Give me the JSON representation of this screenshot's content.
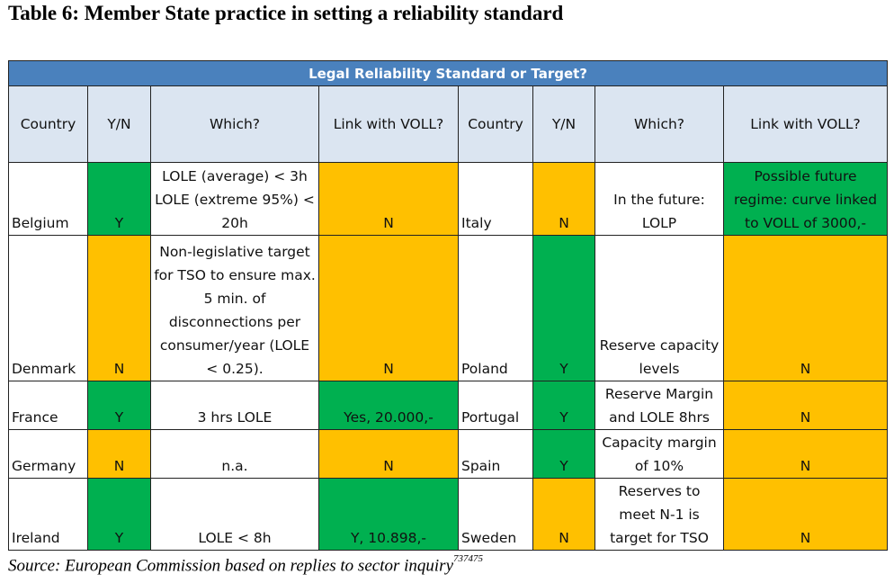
{
  "title": "Table 6: Member State practice in setting a reliability standard",
  "banner": "Legal Reliability Standard or Target?",
  "headers": [
    "Country",
    "Y/N",
    "Which?",
    "Link with VOLL?",
    "Country",
    "Y/N",
    "Which?",
    "Link with VOLL?"
  ],
  "rows": [
    {
      "left": {
        "country": "Belgium",
        "yn": "Y",
        "which": "LOLE (average) < 3h LOLE (extreme 95%) < 20h",
        "voll": "N"
      },
      "right": {
        "country": "Italy",
        "yn": "N",
        "which": "In the future: LOLP",
        "voll": "Possible future regime: curve linked to VOLL of 3000,-"
      }
    },
    {
      "left": {
        "country": "Denmark",
        "yn": "N",
        "which": "Non-legislative target for TSO to ensure max. 5 min. of disconnections per consumer/year (LOLE < 0.25).",
        "voll": "N"
      },
      "right": {
        "country": "Poland",
        "yn": "Y",
        "which": "Reserve capacity levels",
        "voll": "N"
      }
    },
    {
      "left": {
        "country": "France",
        "yn": "Y",
        "which": "3 hrs LOLE",
        "voll": "Yes, 20.000,-"
      },
      "right": {
        "country": "Portugal",
        "yn": "Y",
        "which": "Reserve Margin and LOLE 8hrs",
        "voll": "N"
      }
    },
    {
      "left": {
        "country": "Germany",
        "yn": "N",
        "which": "n.a.",
        "voll": "N"
      },
      "right": {
        "country": "Spain",
        "yn": "Y",
        "which": "Capacity margin of 10%",
        "voll": "N"
      }
    },
    {
      "left": {
        "country": "Ireland",
        "yn": "Y",
        "which": "LOLE < 8h",
        "voll": "Y, 10.898,-"
      },
      "right": {
        "country": "Sweden",
        "yn": "N",
        "which": "Reserves to meet N-1 is target for TSO",
        "voll": "N"
      }
    }
  ],
  "source": {
    "text": "Source: European Commission based on replies to sector inquiry",
    "footnote": "737475"
  },
  "colors": {
    "green": "#00b050",
    "orange": "#ffc000",
    "header_blue": "#4a81bd",
    "header_light": "#dbe5f1"
  }
}
